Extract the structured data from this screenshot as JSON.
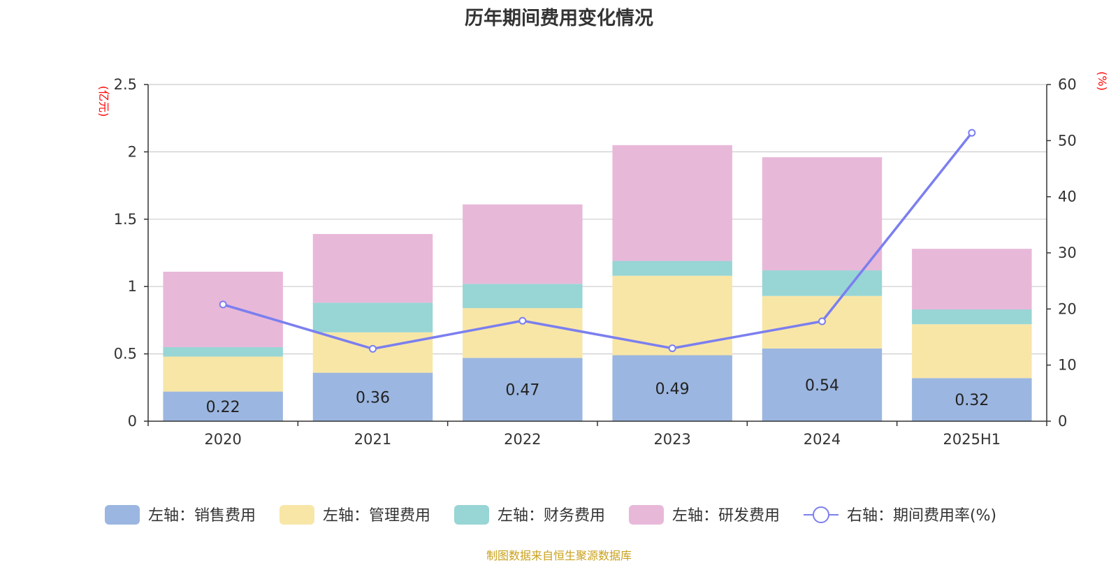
{
  "chart_data": {
    "type": "bar",
    "title": "历年期间费用变化情况",
    "categories": [
      "2020",
      "2021",
      "2022",
      "2023",
      "2024",
      "2025H1"
    ],
    "left_axis": {
      "unit": "(亿元)",
      "range": [
        0,
        2.5
      ],
      "ticks": [
        "0",
        "0.5",
        "1",
        "1.5",
        "2",
        "2.5"
      ],
      "tick_values": [
        0,
        0.5,
        1,
        1.5,
        2,
        2.5
      ]
    },
    "right_axis": {
      "unit": "(%)",
      "range": [
        0,
        60
      ],
      "ticks": [
        "0",
        "10",
        "20",
        "30",
        "40",
        "50",
        "60"
      ],
      "tick_values": [
        0,
        10,
        20,
        30,
        40,
        50,
        60
      ]
    },
    "stacked": true,
    "grid": true,
    "legend_position": "bottom",
    "series": [
      {
        "name": "左轴：销售费用",
        "axis": "left",
        "type": "bar",
        "color": "#9bb6e0",
        "values": [
          0.22,
          0.36,
          0.47,
          0.49,
          0.54,
          0.32
        ],
        "data_labels": [
          "0.22",
          "0.36",
          "0.47",
          "0.49",
          "0.54",
          "0.32"
        ]
      },
      {
        "name": "左轴：管理费用",
        "axis": "left",
        "type": "bar",
        "color": "#f8e6a7",
        "values": [
          0.26,
          0.3,
          0.37,
          0.59,
          0.39,
          0.4
        ]
      },
      {
        "name": "左轴：财务费用",
        "axis": "left",
        "type": "bar",
        "color": "#98d5d5",
        "values": [
          0.07,
          0.22,
          0.18,
          0.11,
          0.19,
          0.11
        ]
      },
      {
        "name": "左轴：研发费用",
        "axis": "left",
        "type": "bar",
        "color": "#e8b8d9",
        "values": [
          0.56,
          0.51,
          0.59,
          0.86,
          0.84,
          0.45
        ]
      },
      {
        "name": "右轴：期间费用率(%)",
        "axis": "right",
        "type": "line",
        "color": "#7b7fef",
        "values": [
          20.8,
          12.9,
          17.9,
          13.0,
          17.8,
          51.4
        ]
      }
    ]
  },
  "source_note": "制图数据来自恒生聚源数据库"
}
